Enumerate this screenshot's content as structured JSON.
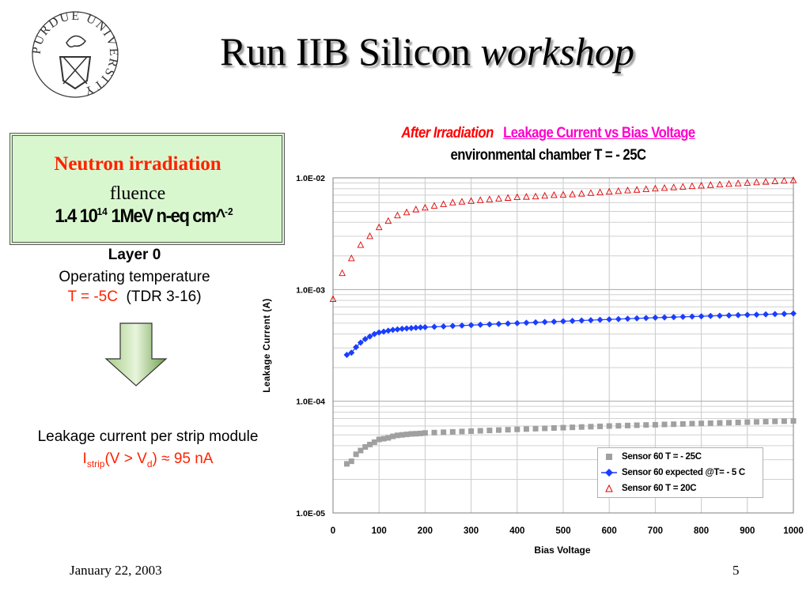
{
  "slide": {
    "title_main": "Run IIB Silicon ",
    "title_italic": "workshop",
    "logo_text": "PURDUE UNIVERSITY",
    "footer_date": "January 22, 2003",
    "page_number": "5"
  },
  "irradiation": {
    "heading": "Neutron irradiation",
    "fluence_label": "fluence",
    "value_pre": "1.4 10",
    "value_exp": "14",
    "value_mid": " 1MeV n-eq cm^",
    "value_exp2": "-2"
  },
  "layer": {
    "title": "Layer 0",
    "operating_temperature": "Operating temperature",
    "temp_value": "T = -5C",
    "temp_ref": "(TDR 3-16)"
  },
  "leakage": {
    "label": "Leakage current per strip module",
    "symbol": "I",
    "sub1": "strip",
    "mid": "(V > V",
    "sub2": "d",
    "tail": ") ≈ 95 nA"
  },
  "chart_data": {
    "type": "scatter",
    "title_part1": "After Irradiation",
    "title_part2": "Leakage Current vs Bias Voltage",
    "subtitle": "environmental chamber  T = - 25C",
    "xlabel": "Bias Voltage",
    "ylabel": "Leakage Current (A)",
    "xlim": [
      0,
      1000
    ],
    "ylim": [
      1e-05,
      0.01
    ],
    "yscale": "log",
    "x_ticks": [
      "0",
      "100",
      "200",
      "300",
      "400",
      "500",
      "600",
      "700",
      "800",
      "900",
      "1000"
    ],
    "y_ticks": [
      "1.0E-05",
      "1.0E-04",
      "1.0E-03",
      "1.0E-02"
    ],
    "grid": true,
    "legend_position": "bottom-right",
    "series": [
      {
        "name": "Sensor 60 T = - 25C",
        "marker": "square",
        "color": "#a0a0a0",
        "points": [
          [
            30,
            2.75e-05
          ],
          [
            40,
            2.9e-05
          ],
          [
            50,
            3.35e-05
          ],
          [
            60,
            3.62e-05
          ],
          [
            70,
            3.9e-05
          ],
          [
            80,
            4.1e-05
          ],
          [
            90,
            4.3e-05
          ],
          [
            100,
            4.55e-05
          ],
          [
            110,
            4.62e-05
          ],
          [
            120,
            4.7e-05
          ],
          [
            130,
            4.85e-05
          ],
          [
            140,
            4.95e-05
          ],
          [
            150,
            5e-05
          ],
          [
            160,
            5.05e-05
          ],
          [
            170,
            5.1e-05
          ],
          [
            180,
            5.12e-05
          ],
          [
            190,
            5.15e-05
          ],
          [
            200,
            5.2e-05
          ],
          [
            220,
            5.24e-05
          ],
          [
            240,
            5.28e-05
          ],
          [
            260,
            5.32e-05
          ],
          [
            280,
            5.36e-05
          ],
          [
            300,
            5.4e-05
          ],
          [
            320,
            5.44e-05
          ],
          [
            340,
            5.48e-05
          ],
          [
            360,
            5.52e-05
          ],
          [
            380,
            5.56e-05
          ],
          [
            400,
            5.6e-05
          ],
          [
            420,
            5.64e-05
          ],
          [
            440,
            5.68e-05
          ],
          [
            460,
            5.72e-05
          ],
          [
            480,
            5.76e-05
          ],
          [
            500,
            5.8e-05
          ],
          [
            520,
            5.84e-05
          ],
          [
            540,
            5.88e-05
          ],
          [
            560,
            5.92e-05
          ],
          [
            580,
            5.96e-05
          ],
          [
            600,
            6e-05
          ],
          [
            620,
            6.03e-05
          ],
          [
            640,
            6.06e-05
          ],
          [
            660,
            6.1e-05
          ],
          [
            680,
            6.13e-05
          ],
          [
            700,
            6.16e-05
          ],
          [
            720,
            6.2e-05
          ],
          [
            740,
            6.23e-05
          ],
          [
            760,
            6.26e-05
          ],
          [
            780,
            6.3e-05
          ],
          [
            800,
            6.33e-05
          ],
          [
            820,
            6.36e-05
          ],
          [
            840,
            6.4e-05
          ],
          [
            860,
            6.43e-05
          ],
          [
            880,
            6.46e-05
          ],
          [
            900,
            6.5e-05
          ],
          [
            920,
            6.53e-05
          ],
          [
            940,
            6.56e-05
          ],
          [
            960,
            6.6e-05
          ],
          [
            980,
            6.63e-05
          ],
          [
            1000,
            6.66e-05
          ]
        ]
      },
      {
        "name": "Sensor 60 expected @T= - 5 C",
        "marker": "diamond",
        "color": "#1a3dff",
        "points": [
          [
            30,
            0.00026
          ],
          [
            40,
            0.000272
          ],
          [
            50,
            0.000305
          ],
          [
            60,
            0.000335
          ],
          [
            70,
            0.00036
          ],
          [
            80,
            0.00038
          ],
          [
            90,
            0.0004
          ],
          [
            100,
            0.000413
          ],
          [
            110,
            0.00042
          ],
          [
            120,
            0.000428
          ],
          [
            130,
            0.000435
          ],
          [
            140,
            0.00044
          ],
          [
            150,
            0.000445
          ],
          [
            160,
            0.000449
          ],
          [
            170,
            0.000452
          ],
          [
            180,
            0.000455
          ],
          [
            190,
            0.000458
          ],
          [
            200,
            0.00046
          ],
          [
            220,
            0.000464
          ],
          [
            240,
            0.000468
          ],
          [
            260,
            0.000472
          ],
          [
            280,
            0.000476
          ],
          [
            300,
            0.00048
          ],
          [
            320,
            0.000484
          ],
          [
            340,
            0.000488
          ],
          [
            360,
            0.000492
          ],
          [
            380,
            0.000496
          ],
          [
            400,
            0.0005
          ],
          [
            420,
            0.000504
          ],
          [
            440,
            0.000508
          ],
          [
            460,
            0.000512
          ],
          [
            480,
            0.000516
          ],
          [
            500,
            0.00052
          ],
          [
            520,
            0.000524
          ],
          [
            540,
            0.000528
          ],
          [
            560,
            0.000532
          ],
          [
            580,
            0.000536
          ],
          [
            600,
            0.00054
          ],
          [
            620,
            0.000544
          ],
          [
            640,
            0.000548
          ],
          [
            660,
            0.000552
          ],
          [
            680,
            0.000556
          ],
          [
            700,
            0.00056
          ],
          [
            720,
            0.000563
          ],
          [
            740,
            0.000566
          ],
          [
            760,
            0.00057
          ],
          [
            780,
            0.000573
          ],
          [
            800,
            0.000576
          ],
          [
            820,
            0.00058
          ],
          [
            840,
            0.000583
          ],
          [
            860,
            0.000586
          ],
          [
            880,
            0.00059
          ],
          [
            900,
            0.000593
          ],
          [
            920,
            0.000596
          ],
          [
            940,
            0.0006
          ],
          [
            960,
            0.000603
          ],
          [
            980,
            0.000606
          ],
          [
            1000,
            0.00061
          ]
        ]
      },
      {
        "name": "Sensor 60 T = 20C",
        "marker": "triangle",
        "color": "#e00000",
        "points": [
          [
            0,
            0.00082
          ],
          [
            20,
            0.0014
          ],
          [
            40,
            0.0019
          ],
          [
            60,
            0.0025
          ],
          [
            80,
            0.003
          ],
          [
            100,
            0.0036
          ],
          [
            120,
            0.0041
          ],
          [
            140,
            0.0046
          ],
          [
            160,
            0.0049
          ],
          [
            180,
            0.0052
          ],
          [
            200,
            0.0054
          ],
          [
            220,
            0.0056
          ],
          [
            240,
            0.0058
          ],
          [
            260,
            0.006
          ],
          [
            280,
            0.0061
          ],
          [
            300,
            0.0062
          ],
          [
            320,
            0.0063
          ],
          [
            340,
            0.0064
          ],
          [
            360,
            0.0065
          ],
          [
            380,
            0.0066
          ],
          [
            400,
            0.0067
          ],
          [
            420,
            0.00675
          ],
          [
            440,
            0.0068
          ],
          [
            460,
            0.0069
          ],
          [
            480,
            0.007
          ],
          [
            500,
            0.00705
          ],
          [
            520,
            0.0071
          ],
          [
            540,
            0.0072
          ],
          [
            560,
            0.0073
          ],
          [
            580,
            0.0074
          ],
          [
            600,
            0.0075
          ],
          [
            620,
            0.0076
          ],
          [
            640,
            0.0077
          ],
          [
            660,
            0.0078
          ],
          [
            680,
            0.0079
          ],
          [
            700,
            0.008
          ],
          [
            720,
            0.0081
          ],
          [
            740,
            0.0082
          ],
          [
            760,
            0.0083
          ],
          [
            780,
            0.0084
          ],
          [
            800,
            0.0085
          ],
          [
            820,
            0.0086
          ],
          [
            840,
            0.0087
          ],
          [
            860,
            0.0088
          ],
          [
            880,
            0.0089
          ],
          [
            900,
            0.009
          ],
          [
            920,
            0.0091
          ],
          [
            940,
            0.0092
          ],
          [
            960,
            0.0093
          ],
          [
            980,
            0.0094
          ],
          [
            1000,
            0.0095
          ]
        ]
      }
    ]
  },
  "colors": {
    "accent_red": "#ff2200",
    "box_green": "#d9f7cf",
    "arrow_green": "#6f9e4c"
  }
}
